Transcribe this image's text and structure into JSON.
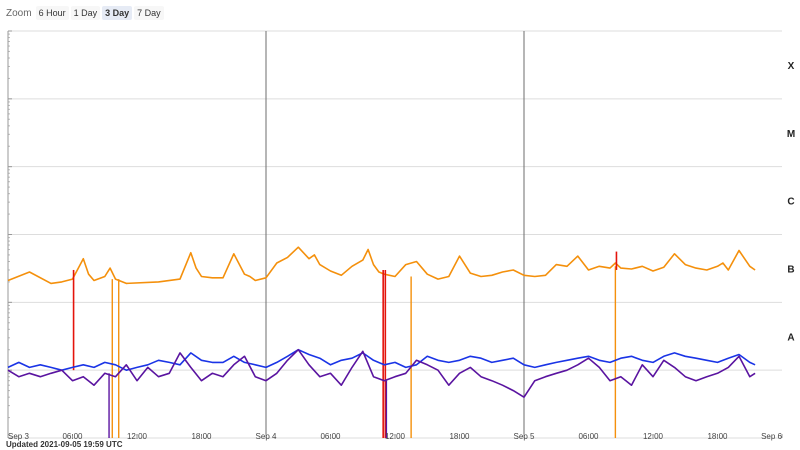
{
  "zoom": {
    "label": "Zoom",
    "options": [
      "6 Hour",
      "1 Day",
      "3 Day",
      "7 Day"
    ],
    "selected": "3 Day"
  },
  "updated": "Updated 2021-09-05 19:59 UTC",
  "colors": {
    "long_primary": "#f4900c",
    "long_secondary": "#e4140c",
    "short_primary": "#1a34e6",
    "short_secondary": "#5a14a0",
    "grid": "#dddddd",
    "day_line": "#6d6d6d"
  },
  "chart_data": {
    "type": "line",
    "title": "",
    "xlabel": "",
    "ylabel": "",
    "x_range": [
      "Sep 3 00:00",
      "Sep 6 00:00"
    ],
    "y_scale": "log",
    "ylim": [
      1e-09,
      0.001
    ],
    "flux_classes": [
      "A",
      "B",
      "C",
      "M",
      "X"
    ],
    "x_ticks": [
      "Sep 3",
      "06:00",
      "12:00",
      "18:00",
      "Sep 4",
      "06:00",
      "12:00",
      "18:00",
      "Sep 5",
      "06:00",
      "12:00",
      "18:00",
      "Sep 6"
    ],
    "grid": true,
    "series": [
      {
        "color": "#f4900c",
        "x_hours": [
          0,
          2,
          4,
          5,
          6,
          7,
          7.5,
          8,
          9,
          9.5,
          10,
          11,
          14,
          16,
          17,
          17.5,
          18,
          19,
          20,
          21,
          22,
          22.5,
          23,
          24,
          25,
          26,
          27,
          28,
          28.5,
          29,
          30,
          31,
          32,
          33,
          33.5,
          34,
          34.5,
          35,
          36,
          37,
          38,
          39,
          40,
          41,
          42,
          43,
          44,
          45,
          46,
          47,
          48,
          49,
          50,
          51,
          52,
          53,
          54,
          55,
          56,
          56.5,
          57,
          58,
          59,
          60,
          61,
          62,
          63,
          64,
          65,
          66,
          66.5,
          67,
          68,
          69,
          69.5
        ],
        "y_flux": [
          2.1e-07,
          2.8e-07,
          1.9e-07,
          2e-07,
          2.2e-07,
          4.4e-07,
          2.6e-07,
          2.1e-07,
          2.4e-07,
          3.2e-07,
          2.2e-07,
          1.9e-07,
          2e-07,
          2.2e-07,
          5.4e-07,
          3.2e-07,
          2.4e-07,
          2.3e-07,
          2.3e-07,
          5.2e-07,
          2.6e-07,
          2.4e-07,
          2.1e-07,
          2.3e-07,
          3.8e-07,
          4.6e-07,
          6.5e-07,
          4.4e-07,
          5e-07,
          3.6e-07,
          2.9e-07,
          2.5e-07,
          3.4e-07,
          4.2e-07,
          6e-07,
          3.6e-07,
          2.8e-07,
          2.6e-07,
          2.4e-07,
          3.6e-07,
          4e-07,
          2.6e-07,
          2.2e-07,
          2.4e-07,
          4.8e-07,
          2.7e-07,
          2.4e-07,
          2.5e-07,
          2.8e-07,
          3e-07,
          2.5e-07,
          2.4e-07,
          2.5e-07,
          3.6e-07,
          3.4e-07,
          4.8e-07,
          3e-07,
          3.4e-07,
          3.2e-07,
          3.8e-07,
          3.2e-07,
          3.1e-07,
          3.4e-07,
          2.9e-07,
          3.3e-07,
          5.2e-07,
          3.6e-07,
          3.2e-07,
          3e-07,
          3.4e-07,
          3.8e-07,
          3e-07,
          5.8e-07,
          3.4e-07,
          3e-07
        ],
        "dropouts_x_hours": [
          9.7,
          10.3,
          37.5,
          56.5
        ]
      },
      {
        "color": "#e4140c",
        "x_hours": [
          6.1,
          34.9,
          35.1,
          56.6
        ],
        "y_flux": [
          1e-08,
          1e-09,
          1e-09,
          5.6e-07
        ]
      },
      {
        "color": "#1a34e6",
        "x_hours": [
          0,
          1,
          2,
          3,
          4,
          5,
          6,
          7,
          8,
          9,
          10,
          11,
          12,
          13,
          14,
          15,
          16,
          17,
          18,
          19,
          20,
          21,
          22,
          23,
          24,
          25,
          26,
          27,
          28,
          29,
          30,
          31,
          32,
          33,
          34,
          35,
          36,
          37,
          38,
          39,
          40,
          41,
          42,
          43,
          44,
          45,
          46,
          47,
          48,
          49,
          50,
          51,
          52,
          53,
          54,
          55,
          56,
          57,
          58,
          59,
          60,
          61,
          62,
          63,
          64,
          65,
          66,
          67,
          68,
          69,
          69.5
        ],
        "y_flux": [
          1.1e-08,
          1.3e-08,
          1.1e-08,
          1.2e-08,
          1.1e-08,
          1e-08,
          1.1e-08,
          1.2e-08,
          1.1e-08,
          1.3e-08,
          1.2e-08,
          1e-08,
          1.1e-08,
          1.2e-08,
          1.4e-08,
          1.3e-08,
          1.2e-08,
          1.8e-08,
          1.4e-08,
          1.3e-08,
          1.3e-08,
          1.6e-08,
          1.3e-08,
          1.2e-08,
          1.1e-08,
          1.3e-08,
          1.6e-08,
          2e-08,
          1.7e-08,
          1.5e-08,
          1.2e-08,
          1.4e-08,
          1.5e-08,
          1.8e-08,
          1.4e-08,
          1.2e-08,
          1.3e-08,
          1.1e-08,
          1.2e-08,
          1.6e-08,
          1.4e-08,
          1.3e-08,
          1.4e-08,
          1.6e-08,
          1.5e-08,
          1.3e-08,
          1.4e-08,
          1.5e-08,
          1.2e-08,
          1.1e-08,
          1.2e-08,
          1.3e-08,
          1.4e-08,
          1.5e-08,
          1.6e-08,
          1.4e-08,
          1.3e-08,
          1.5e-08,
          1.6e-08,
          1.4e-08,
          1.3e-08,
          1.6e-08,
          1.8e-08,
          1.6e-08,
          1.5e-08,
          1.4e-08,
          1.3e-08,
          1.5e-08,
          1.7e-08,
          1.3e-08,
          1.2e-08
        ]
      },
      {
        "color": "#5a14a0",
        "x_hours": [
          0,
          1,
          2,
          3,
          4,
          5,
          6,
          7,
          8,
          9,
          10,
          11,
          12,
          13,
          14,
          15,
          16,
          17,
          18,
          19,
          20,
          21,
          22,
          23,
          24,
          25,
          26,
          27,
          28,
          29,
          30,
          31,
          32,
          33,
          34,
          35,
          36,
          37,
          38,
          39,
          40,
          41,
          42,
          43,
          44,
          45,
          46,
          47,
          48,
          49,
          50,
          51,
          52,
          53,
          54,
          55,
          56,
          57,
          58,
          59,
          60,
          61,
          62,
          63,
          64,
          65,
          66,
          67,
          68,
          69,
          69.5
        ],
        "y_flux": [
          1e-08,
          8e-09,
          9e-09,
          8e-09,
          9e-09,
          1e-08,
          7e-09,
          8e-09,
          6e-09,
          9e-09,
          8e-09,
          1.2e-08,
          7e-09,
          1.1e-08,
          8e-09,
          9e-09,
          1.8e-08,
          1.1e-08,
          7e-09,
          9e-09,
          8e-09,
          1.2e-08,
          1.6e-08,
          8e-09,
          7e-09,
          9e-09,
          1.4e-08,
          2e-08,
          1.2e-08,
          8e-09,
          9e-09,
          6e-09,
          1.1e-08,
          1.9e-08,
          8e-09,
          7e-09,
          8e-09,
          9e-09,
          1.4e-08,
          1.2e-08,
          1e-08,
          6e-09,
          9e-09,
          1.1e-08,
          8e-09,
          7e-09,
          6e-09,
          5e-09,
          4e-09,
          7e-09,
          8e-09,
          9e-09,
          1e-08,
          1.2e-08,
          1.5e-08,
          1.1e-08,
          7e-09,
          8e-09,
          6e-09,
          1.2e-08,
          8e-09,
          1.4e-08,
          1.1e-08,
          8e-09,
          7e-09,
          8e-09,
          9e-09,
          1.1e-08,
          1.6e-08,
          8e-09,
          9e-09
        ],
        "dropouts_x_hours": [
          9.4,
          35.2
        ]
      }
    ]
  }
}
